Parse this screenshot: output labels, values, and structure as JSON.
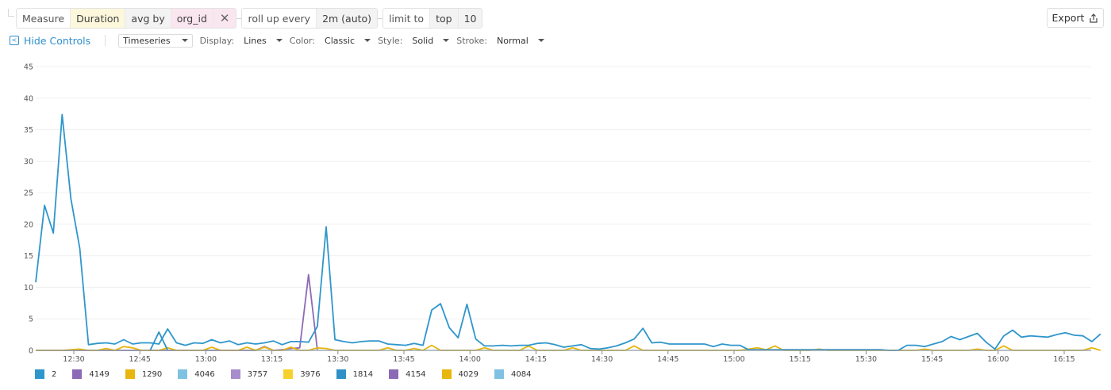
{
  "query": {
    "measure_label": "Measure",
    "measure_value": "Duration",
    "agg_label": "avg by",
    "group_by": "org_id",
    "remove_icon": "close-icon",
    "rollup_label": "roll up every",
    "rollup_value": "2m (auto)",
    "limit_label": "limit to",
    "limit_dir": "top",
    "limit_value": "10"
  },
  "export": {
    "label": "Export",
    "icon": "share-upload-icon"
  },
  "controls": {
    "hide_label": "Hide Controls",
    "viz_type": "Timeseries",
    "display_label": "Display:",
    "display_value": "Lines",
    "color_label": "Color:",
    "color_value": "Classic",
    "style_label": "Style:",
    "style_value": "Solid",
    "stroke_label": "Stroke:",
    "stroke_value": "Normal"
  },
  "legend": [
    {
      "label": "2",
      "color": "#2f96cc"
    },
    {
      "label": "4149",
      "color": "#8c6ab6"
    },
    {
      "label": "1290",
      "color": "#e8b60c"
    },
    {
      "label": "4046",
      "color": "#7ec1e3"
    },
    {
      "label": "3757",
      "color": "#a88dcc"
    },
    {
      "label": "3976",
      "color": "#f6d12e"
    },
    {
      "label": "1814",
      "color": "#2f90c6"
    },
    {
      "label": "4154",
      "color": "#8c6ab6"
    },
    {
      "label": "4029",
      "color": "#e8b60c"
    },
    {
      "label": "4084",
      "color": "#7ec1e3"
    }
  ],
  "chart_data": {
    "type": "line",
    "title": "",
    "xlabel": "",
    "ylabel": "",
    "ylim": [
      0,
      45
    ],
    "yticks": [
      0,
      5,
      10,
      15,
      20,
      25,
      30,
      35,
      40,
      45
    ],
    "xticks": [
      "12:30",
      "12:45",
      "13:00",
      "13:15",
      "13:30",
      "13:45",
      "14:00",
      "14:15",
      "14:30",
      "14:45",
      "15:00",
      "15:15",
      "15:30",
      "15:45",
      "16:00",
      "16:15"
    ],
    "grid": true,
    "legend_position": "bottom",
    "x_start": "12:21",
    "x_step_minutes": 2,
    "series": [
      {
        "name": "2",
        "color": "#2f96cc",
        "values": [
          10.8,
          23,
          18.6,
          37.4,
          24,
          16.2,
          0.9,
          1.1,
          1.2,
          1.0,
          1.7,
          1.0,
          1.2,
          1.2,
          1.0,
          3.4,
          1.2,
          0.8,
          1.2,
          1.1,
          1.7,
          1.2,
          1.5,
          0.9,
          1.2,
          1.0,
          1.2,
          1.5,
          0.9,
          1.4,
          1.4,
          1.3,
          3.8,
          19.6,
          1.7,
          1.4,
          1.2,
          1.4,
          1.5,
          1.5,
          1.0,
          0.9,
          0.8,
          1.1,
          0.8,
          6.4,
          7.4,
          3.6,
          2.0,
          7.3,
          1.8,
          0.7,
          0.7,
          0.8,
          0.7,
          0.8,
          0.8,
          1.1,
          1.2,
          0.9,
          0.5,
          0.7,
          0.9,
          0.3,
          0.2,
          0.4,
          0.7,
          1.2,
          1.8,
          3.5,
          1.2,
          1.3,
          1.0,
          1.0,
          1.0,
          1.0,
          1.0,
          0.6,
          1.0,
          0.8,
          0.8,
          0.1,
          0.1,
          0.1,
          0.1,
          0.1,
          0.1,
          0.1,
          0.1,
          0.1,
          0.1,
          0.1,
          0.1,
          0.1,
          0.1,
          0.1,
          0.1,
          0.0,
          0.0,
          0.8,
          0.8,
          0.6,
          1.0,
          1.4,
          2.2,
          1.7,
          2.2,
          2.7,
          1.3,
          0.2,
          2.3,
          3.2,
          2.1,
          2.3,
          2.2,
          2.1,
          2.5,
          2.8,
          2.4,
          2.3,
          1.4,
          2.6
        ]
      },
      {
        "name": "1814",
        "color": "#2f90c6",
        "values": [
          null,
          null,
          null,
          null,
          null,
          null,
          null,
          null,
          null,
          null,
          null,
          null,
          null,
          0.0,
          2.9,
          0.0
        ]
      },
      {
        "name": "4149",
        "color": "#8c6ab6",
        "values": [
          0,
          0,
          0,
          0,
          0,
          0,
          0,
          0,
          0,
          0,
          0,
          0,
          0,
          0,
          0,
          0,
          0,
          0,
          0,
          0,
          0,
          0,
          0,
          0,
          0,
          0,
          0.6,
          0,
          0.1,
          0.3,
          0.4,
          12.0,
          0.1
        ]
      },
      {
        "name": "1290",
        "color": "#e8b60c",
        "values": [
          0,
          0,
          0,
          0,
          0.1,
          0.2,
          0,
          0,
          0.3,
          0,
          0.6,
          0.4,
          0,
          0,
          0,
          0.4,
          0,
          0,
          0,
          0,
          0.5,
          0,
          0,
          0,
          0.5,
          0,
          0.5,
          0,
          0,
          0.5,
          0,
          0,
          0.4,
          0.3,
          0,
          0,
          0,
          0,
          0,
          0,
          0.4,
          0,
          0,
          0.3,
          0,
          0.8,
          0,
          0,
          0,
          0,
          0,
          0.4,
          0,
          0,
          0,
          0,
          0.7,
          0,
          0,
          0,
          0,
          0.4,
          0,
          0,
          0,
          0,
          0,
          0,
          0.7,
          0,
          0,
          0,
          0,
          0,
          0,
          0,
          0,
          0,
          0,
          0,
          0,
          0.2,
          0.4,
          0.1,
          0.7,
          0,
          0,
          0,
          0,
          0.2,
          0,
          0,
          0,
          0,
          0,
          0,
          0,
          0,
          0,
          0,
          0,
          0.2,
          0,
          0,
          0,
          0,
          0,
          0.2,
          0,
          0,
          0.7,
          0,
          0,
          0,
          0,
          0,
          0,
          0,
          0,
          0,
          0.4,
          0
        ]
      }
    ]
  }
}
